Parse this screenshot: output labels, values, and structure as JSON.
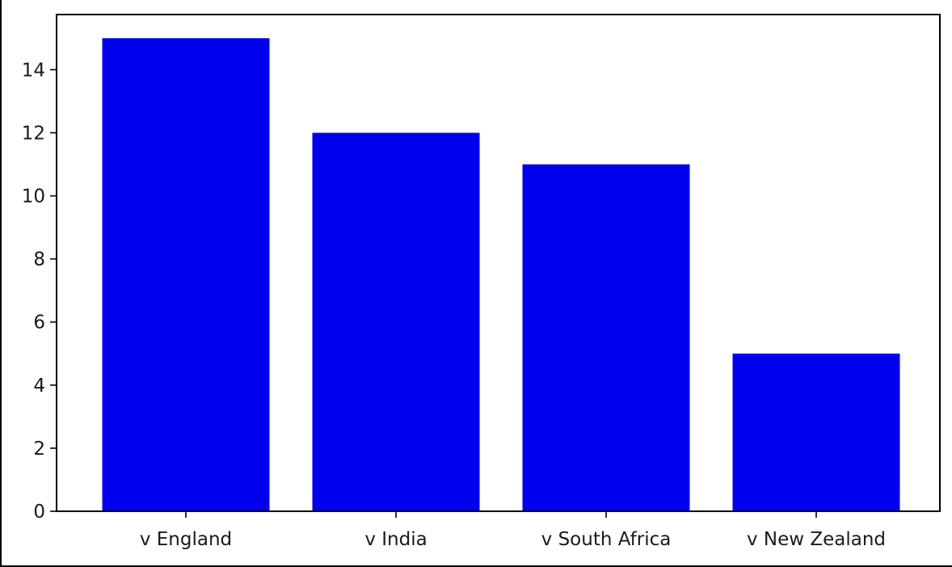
{
  "chart_data": {
    "type": "bar",
    "categories": [
      "v England",
      "v India",
      "v South Africa",
      "v New Zealand"
    ],
    "values": [
      15,
      12,
      11,
      5
    ],
    "title": "",
    "xlabel": "",
    "ylabel": "",
    "ylim": [
      0,
      15.75
    ],
    "yticks": [
      0,
      2,
      4,
      6,
      8,
      10,
      12,
      14
    ],
    "grid": false,
    "bar_color": "#0000ee",
    "axis_color": "#000000",
    "text_color": "#1a1a1a"
  }
}
